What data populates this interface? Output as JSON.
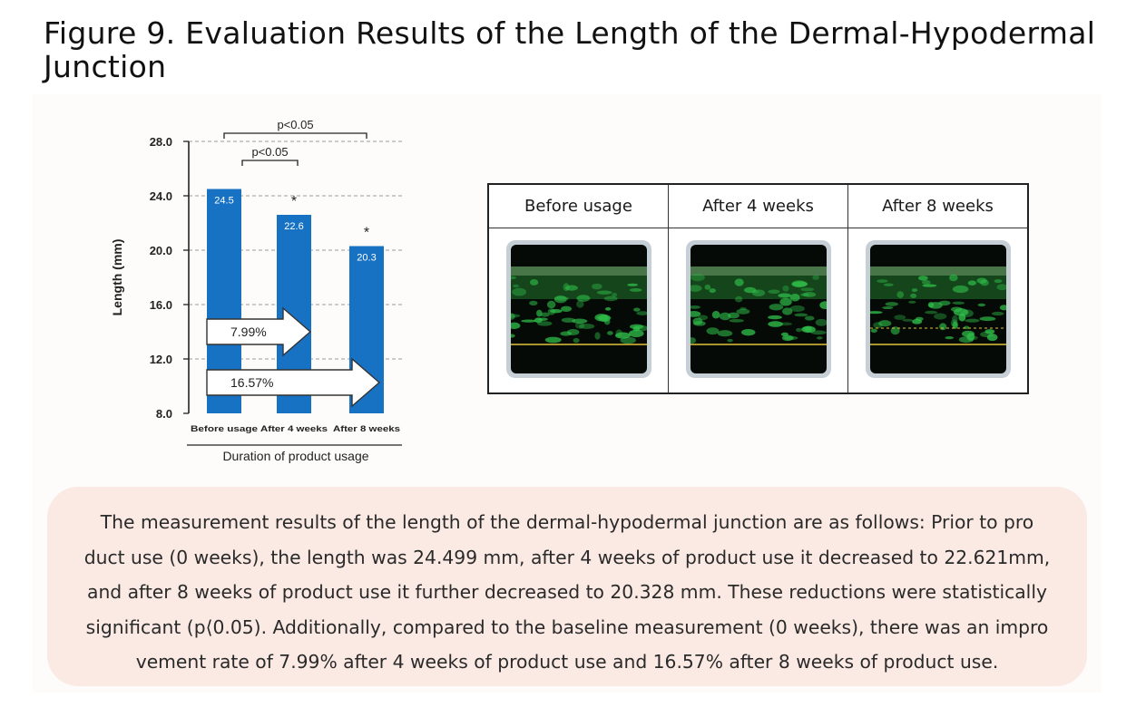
{
  "figure_title": "Figure 9. Evaluation Results of the Length of the Dermal-Hypodermal Junction",
  "chart_data": {
    "type": "bar",
    "categories": [
      "Before usage",
      "After 4 weeks",
      "After 8 weeks"
    ],
    "values": [
      24.5,
      22.6,
      20.3
    ],
    "value_labels": [
      "24.5",
      "22.6",
      "20.3"
    ],
    "xlabel": "Duration of product usage",
    "ylabel": "Length (mm)",
    "ylim": [
      8.0,
      28.0
    ],
    "yticks": [
      "8.0",
      "12.0",
      "16.0",
      "20.0",
      "24.0",
      "28.0"
    ],
    "grid": "dashed horizontal",
    "bar_color": "#1872c4",
    "significance_markers": [
      "*",
      "*"
    ],
    "brackets": [
      {
        "label": "p<0.05",
        "from": "Before usage",
        "to": "After 8 weeks"
      },
      {
        "label": "p<0.05",
        "from": "Before usage",
        "to": "After 4 weeks"
      }
    ],
    "improvement_arrows": [
      {
        "label": "7.99%",
        "value": 7.99,
        "to": "After 4 weeks"
      },
      {
        "label": "16.57%",
        "value": 16.57,
        "to": "After 8 weeks"
      }
    ]
  },
  "comparison_table": {
    "headers": [
      "Before usage",
      "After 4 weeks",
      "After 8 weeks"
    ]
  },
  "summary_lines": [
    "The measurement results of the length of the dermal-hypodermal junction are as follows: Prior to pro",
    "duct use (0 weeks), the length was 24.499 mm, after 4 weeks of product use it decreased to 22.621mm,",
    "and after 8 weeks of product use it further decreased to 20.328 mm. These reductions were statistically",
    "significant (p⟨0.05). Additionally, compared to the baseline measurement (0 weeks), there was an impro",
    "vement rate of 7.99% after 4 weeks of product use and 16.57% after 8 weeks of product use."
  ]
}
